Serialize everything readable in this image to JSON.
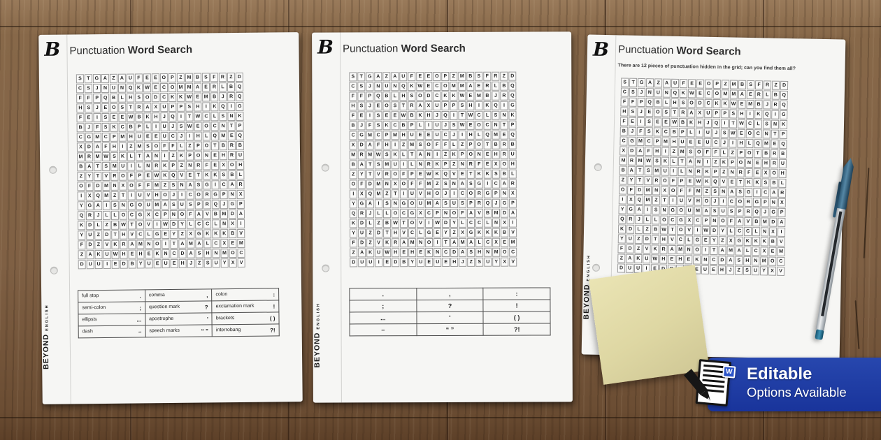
{
  "scene": {
    "surface": "wood-table",
    "wood_base_color": "#83654a",
    "wood_seam_color": "#3b2817",
    "paper_color": "#f6f6f4",
    "sticky_note_color": "#ded7a3",
    "pen_cap_color": "#38607a",
    "pen_barrel_color": "#c6cacd",
    "pen_plug_color": "#257191"
  },
  "brand": {
    "logo_letter": "B",
    "vertical_primary": "BEYOND",
    "vertical_secondary": "ENGLISH"
  },
  "worksheets": [
    {
      "title_regular": "Punctuation",
      "title_bold": "Word Search",
      "subtitle": "",
      "legend_style": "words_and_symbols"
    },
    {
      "title_regular": "Punctuation",
      "title_bold": "Word Search",
      "subtitle": "",
      "legend_style": "symbols_only"
    },
    {
      "title_regular": "Punctuation",
      "title_bold": "Word Search",
      "subtitle": "There are 12 pieces of punctuation hidden in the grid; can you find them all?",
      "legend_style": "none"
    }
  ],
  "grid": {
    "columns": 20,
    "rows": [
      "STGAZAUFEEOPZMBSFRZD",
      "CSJNUNQKWECOMMAERLBQ",
      "FFPQBLHSODCKKWEMBJRQ",
      "HSJEOSTRAXUPPSHIKQIG",
      "FEISEEWBKHJQITWCLSNK",
      "BJFSKCBPLIUJSWEOCNTP",
      "CGMCPMHUEEUCJIHLQMEQ",
      "XDAFHIZMSOFFLZPOTBRB",
      "MRMWSKLTANIZKPONEHRU",
      "BATSMUILNRKPZNRFEXOH",
      "ZYTVROFPEWKQVETKKSBL",
      "OFDMNXOFFMZSNASGICAR",
      "IXQMZTIUVHOJICORGPNX",
      "YGAISNGOUMASUSPRQJGP",
      "QRJLLOCGXCPNOFAVBMDA",
      "KDLZBWTOVIWDYLCCLNXI",
      "YUZDTHVCLGEYZXGKKKBV",
      "FDZVKRAMNOITAMALCXEM",
      "ZAKUWHEHEKNCDASHNMOC",
      "DUUIEDBYUEUEHJZSUYXV"
    ]
  },
  "legend": {
    "rows": [
      [
        {
          "label": "full stop",
          "symbol": "."
        },
        {
          "label": "comma",
          "symbol": ","
        },
        {
          "label": "colon",
          "symbol": ":"
        }
      ],
      [
        {
          "label": "semi-colon",
          "symbol": ";"
        },
        {
          "label": "question mark",
          "symbol": "?"
        },
        {
          "label": "exclamation mark",
          "symbol": "!"
        }
      ],
      [
        {
          "label": "ellipsis",
          "symbol": "..."
        },
        {
          "label": "apostrophe",
          "symbol": "'"
        },
        {
          "label": "brackets",
          "symbol": "( )"
        }
      ],
      [
        {
          "label": "dash",
          "symbol": "–"
        },
        {
          "label": "speech marks",
          "symbol": "“ ”"
        },
        {
          "label": "interrobang",
          "symbol": "?!"
        }
      ]
    ]
  },
  "badge": {
    "title": "Editable",
    "subtitle": "Options Available",
    "background_color": "#1e3da2",
    "word_icon_label": "W"
  }
}
